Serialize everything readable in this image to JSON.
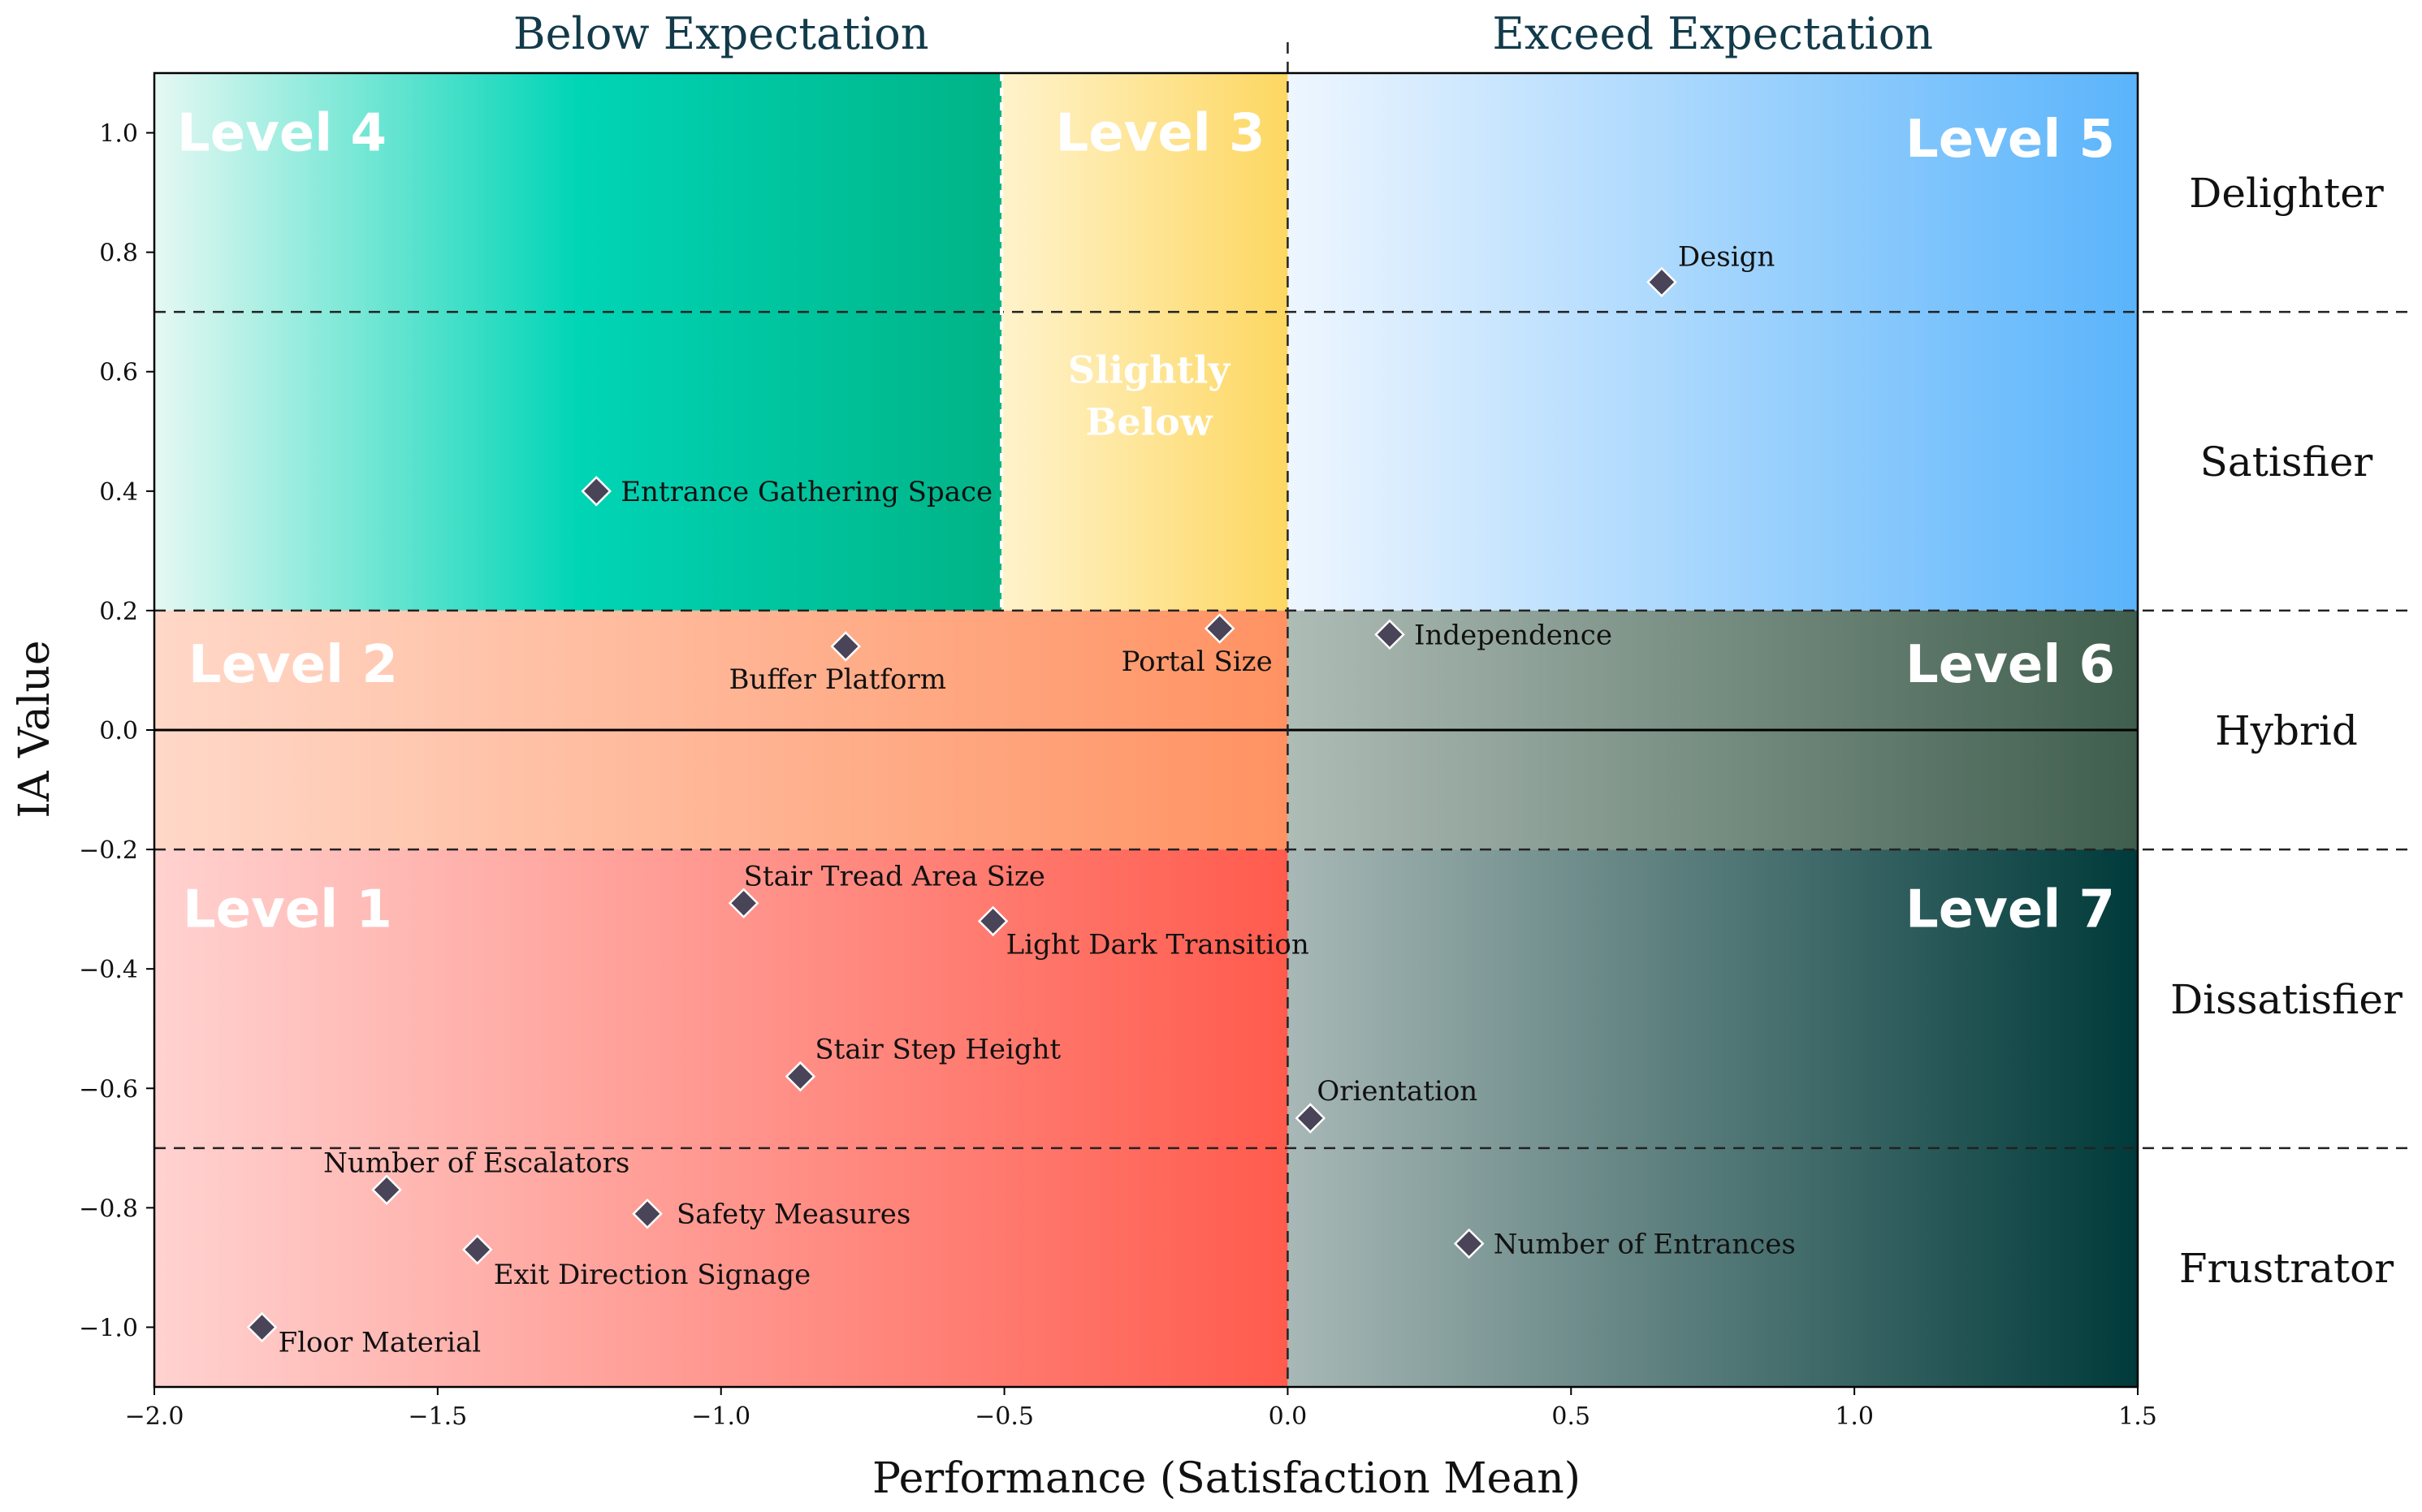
{
  "chart_data": {
    "type": "scatter",
    "title": "",
    "xlabel": "Performance (Satisfaction Mean)",
    "ylabel": "IA Value",
    "xlim": [
      -2.0,
      1.5
    ],
    "ylim": [
      -1.1,
      1.1
    ],
    "xticks": [
      -2.0,
      -1.5,
      -1.0,
      -0.5,
      0.0,
      0.5,
      1.0,
      1.5
    ],
    "yticks": [
      -1.0,
      -0.8,
      -0.6,
      -0.4,
      -0.2,
      0.0,
      0.2,
      0.4,
      0.6,
      0.8,
      1.0
    ],
    "x_tick_labels": [
      "−2.0",
      "−1.5",
      "−1.0",
      "−0.5",
      "0.0",
      "0.5",
      "1.0",
      "1.5"
    ],
    "y_tick_labels": [
      "−1.0",
      "−0.8",
      "−0.6",
      "−0.4",
      "−0.2",
      "0.0",
      "0.2",
      "0.4",
      "0.6",
      "0.8",
      "1.0"
    ],
    "grid": false,
    "horizontal_dividers": [
      0.7,
      0.2,
      -0.2,
      -0.7
    ],
    "vertical_dividers": [
      0.0,
      -0.505
    ],
    "expectation_labels": [
      {
        "text": "Below Expectation",
        "x_center": -1.0
      },
      {
        "text": "Exceed Expectation",
        "x_center": 0.75
      }
    ],
    "bands": [
      {
        "label": "Delighter",
        "y_center": 0.9
      },
      {
        "label": "Satisfier",
        "y_center": 0.45
      },
      {
        "label": "Hybrid",
        "y_center": 0.0
      },
      {
        "label": "Dissatisfier",
        "y_center": -0.45
      },
      {
        "label": "Frustrator",
        "y_center": -0.9
      }
    ],
    "regions": [
      {
        "level": "Level 4",
        "x": [
          -2.0,
          -0.505
        ],
        "y": [
          0.2,
          1.1
        ],
        "colors": [
          "#e6f8f3",
          "#00d5b6",
          "#00b386"
        ]
      },
      {
        "level": "Level 3",
        "x": [
          -0.505,
          0.0
        ],
        "y": [
          0.2,
          1.1
        ],
        "colors": [
          "#fff3cc",
          "#fdd761"
        ],
        "note": [
          "Slightly",
          "Below"
        ]
      },
      {
        "level": "Level 5",
        "x": [
          0.0,
          1.5
        ],
        "y": [
          0.2,
          1.1
        ],
        "colors": [
          "#eef6ff",
          "#5ab4fb"
        ]
      },
      {
        "level": "Level 2",
        "x": [
          -2.0,
          0.0
        ],
        "y": [
          -0.2,
          0.2
        ],
        "colors": [
          "#ffd8c8",
          "#ff9262"
        ]
      },
      {
        "level": "Level 6",
        "x": [
          0.0,
          1.5
        ],
        "y": [
          -0.2,
          0.2
        ],
        "colors": [
          "#aebcb6",
          "#3f5e4d"
        ]
      },
      {
        "level": "Level 1",
        "x": [
          -2.0,
          0.0
        ],
        "y": [
          -1.1,
          -0.2
        ],
        "colors": [
          "#ffd2d0",
          "#ff5b4d"
        ]
      },
      {
        "level": "Level 7",
        "x": [
          0.0,
          1.5
        ],
        "y": [
          -1.1,
          -0.2
        ],
        "colors": [
          "#a8b8b6",
          "#003a3a"
        ]
      }
    ],
    "points": [
      {
        "name": "Design",
        "x": 0.66,
        "y": 0.75
      },
      {
        "name": "Entrance Gathering Space",
        "x": -1.22,
        "y": 0.4
      },
      {
        "name": "Buffer Platform",
        "x": -0.78,
        "y": 0.14
      },
      {
        "name": "Portal Size",
        "x": -0.12,
        "y": 0.17
      },
      {
        "name": "Independence",
        "x": 0.18,
        "y": 0.16
      },
      {
        "name": "Stair Tread Area Size",
        "x": -0.96,
        "y": -0.29
      },
      {
        "name": "Light Dark Transition",
        "x": -0.52,
        "y": -0.32
      },
      {
        "name": "Stair Step Height",
        "x": -0.86,
        "y": -0.58
      },
      {
        "name": "Orientation",
        "x": 0.04,
        "y": -0.65
      },
      {
        "name": "Number of Escalators",
        "x": -1.59,
        "y": -0.77
      },
      {
        "name": "Safety Measures",
        "x": -1.13,
        "y": -0.81
      },
      {
        "name": "Exit Direction Signage",
        "x": -1.43,
        "y": -0.87
      },
      {
        "name": "Number of Entrances",
        "x": 0.32,
        "y": -0.86
      },
      {
        "name": "Floor Material",
        "x": -1.81,
        "y": -1.0
      }
    ],
    "marker_color": "#4a4458"
  }
}
